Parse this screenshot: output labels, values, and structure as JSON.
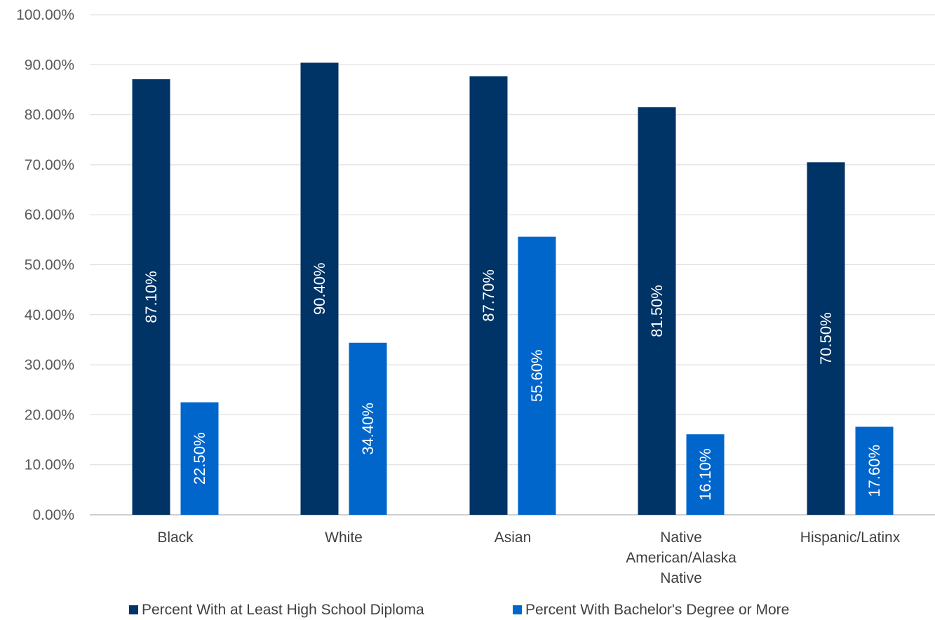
{
  "chart_data": {
    "type": "bar",
    "categories": [
      [
        "Black"
      ],
      [
        "White"
      ],
      [
        "Asian"
      ],
      [
        "Native",
        "American/Alaska",
        "Native"
      ],
      [
        "Hispanic/Latinx"
      ]
    ],
    "series": [
      {
        "name": "Percent With at Least High School Diploma",
        "color": "#003366",
        "values": [
          87.1,
          90.4,
          87.7,
          81.5,
          70.5
        ],
        "labels": [
          "87.10%",
          "90.40%",
          "87.70%",
          "81.50%",
          "70.50%"
        ]
      },
      {
        "name": "Percent With Bachelor's Degree or More",
        "color": "#0066CC",
        "values": [
          22.5,
          34.4,
          55.6,
          16.1,
          17.6
        ],
        "labels": [
          "22.50%",
          "34.40%",
          "55.60%",
          "16.10%",
          "17.60%"
        ]
      }
    ],
    "y_ticks": [
      0,
      10,
      20,
      30,
      40,
      50,
      60,
      70,
      80,
      90,
      100
    ],
    "y_tick_labels": [
      "0.00%",
      "10.00%",
      "20.00%",
      "30.00%",
      "40.00%",
      "50.00%",
      "60.00%",
      "70.00%",
      "80.00%",
      "90.00%",
      "100.00%"
    ],
    "ylim": [
      0,
      100
    ],
    "grid": true,
    "legend_position": "bottom",
    "gridline_color": "#d9d9d9",
    "axis_color": "#bfbfbf"
  }
}
